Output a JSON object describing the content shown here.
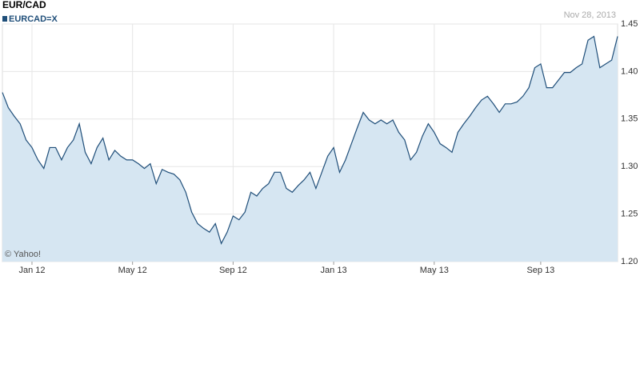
{
  "chart_data": {
    "type": "area",
    "title": "EUR/CAD",
    "series": [
      {
        "name": "EURCAD=X",
        "color": "#1f4e79",
        "fill": "#d6e6f2",
        "values": [
          1.378,
          1.362,
          1.353,
          1.345,
          1.328,
          1.32,
          1.307,
          1.298,
          1.32,
          1.32,
          1.307,
          1.32,
          1.328,
          1.345,
          1.315,
          1.303,
          1.32,
          1.33,
          1.307,
          1.317,
          1.311,
          1.307,
          1.307,
          1.303,
          1.298,
          1.303,
          1.282,
          1.297,
          1.294,
          1.292,
          1.286,
          1.273,
          1.252,
          1.24,
          1.235,
          1.231,
          1.24,
          1.219,
          1.231,
          1.248,
          1.244,
          1.252,
          1.273,
          1.269,
          1.277,
          1.282,
          1.294,
          1.294,
          1.277,
          1.273,
          1.28,
          1.286,
          1.294,
          1.277,
          1.294,
          1.311,
          1.32,
          1.294,
          1.307,
          1.324,
          1.341,
          1.357,
          1.349,
          1.345,
          1.349,
          1.345,
          1.349,
          1.336,
          1.328,
          1.307,
          1.315,
          1.332,
          1.345,
          1.336,
          1.324,
          1.32,
          1.315,
          1.336,
          1.345,
          1.353,
          1.362,
          1.37,
          1.374,
          1.366,
          1.357,
          1.366,
          1.366,
          1.368,
          1.374,
          1.383,
          1.404,
          1.408,
          1.383,
          1.383,
          1.391,
          1.399,
          1.399,
          1.404,
          1.408,
          1.433,
          1.437,
          1.404,
          1.408,
          1.412,
          1.437
        ]
      }
    ],
    "categories": [
      null,
      null,
      null,
      null,
      null,
      "Jan 12",
      null,
      null,
      null,
      null,
      null,
      null,
      null,
      null,
      null,
      null,
      null,
      null,
      null,
      null,
      null,
      null,
      "May 12",
      null,
      null,
      null,
      null,
      null,
      null,
      null,
      null,
      null,
      null,
      null,
      null,
      null,
      null,
      null,
      null,
      "Sep 12",
      null,
      null,
      null,
      null,
      null,
      null,
      null,
      null,
      null,
      null,
      null,
      null,
      null,
      null,
      null,
      null,
      "Jan 13",
      null,
      null,
      null,
      null,
      null,
      null,
      null,
      null,
      null,
      null,
      null,
      null,
      null,
      null,
      null,
      null,
      "May 13",
      null,
      null,
      null,
      null,
      null,
      null,
      null,
      null,
      null,
      null,
      null,
      null,
      null,
      null,
      null,
      null,
      null,
      "Sep 13",
      null,
      null,
      null,
      null,
      null,
      null,
      null,
      null,
      null,
      null,
      null,
      null,
      null
    ],
    "ylim": [
      1.2,
      1.45
    ],
    "yticks": [
      {
        "value": 1.2,
        "label": "1.20"
      },
      1.25,
      {
        "value": 1.3,
        "label": "1.30"
      },
      1.35,
      {
        "value": 1.4,
        "label": "1.40"
      },
      1.45
    ],
    "date": "Nov 28, 2013",
    "credit": "© Yahoo!",
    "grid": true
  }
}
